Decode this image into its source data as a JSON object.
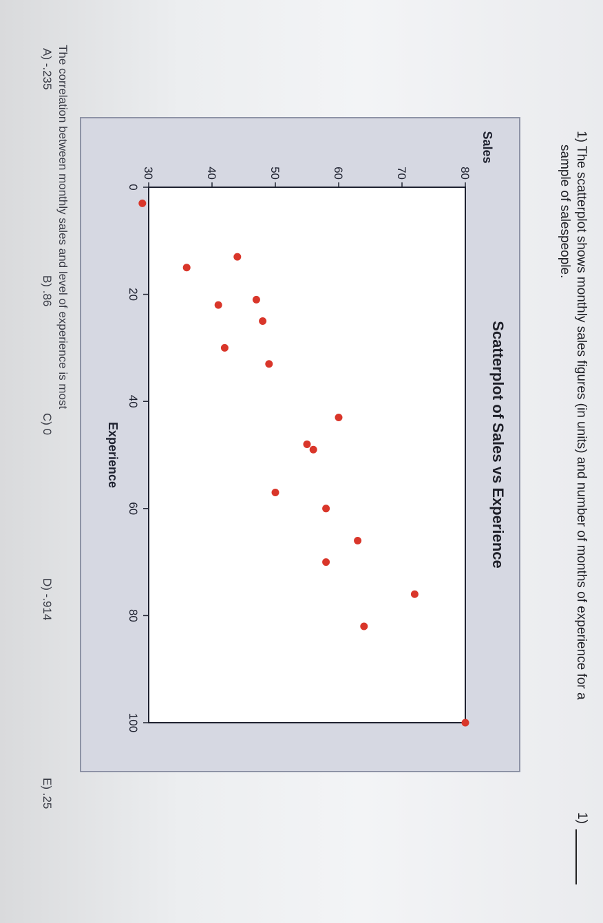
{
  "question": {
    "number": "1)",
    "line1": "1) The scatterplot shows monthly sales figures (in units) and number of months of experience for a",
    "line2": "sample of salespeople.",
    "prompt": "The correlation between monthly sales and level of experience is most",
    "choices": [
      "A) -.235",
      "B) .86",
      "C) 0",
      "D) -.914",
      "E) .25"
    ]
  },
  "chart_data": {
    "type": "scatter",
    "title": "Scatterplot of Sales vs Experience",
    "xlabel": "Experience",
    "ylabel": "Sales",
    "xlim": [
      0,
      100
    ],
    "ylim": [
      30,
      80
    ],
    "xticks": [
      "0",
      "20",
      "40",
      "60",
      "80",
      "100"
    ],
    "yticks": [
      "30",
      "40",
      "50",
      "60",
      "70",
      "80"
    ],
    "grid": false,
    "points": [
      {
        "x": 3,
        "y": 29
      },
      {
        "x": 13,
        "y": 44
      },
      {
        "x": 15,
        "y": 36
      },
      {
        "x": 21,
        "y": 47
      },
      {
        "x": 22,
        "y": 41
      },
      {
        "x": 25,
        "y": 48
      },
      {
        "x": 30,
        "y": 42
      },
      {
        "x": 33,
        "y": 49
      },
      {
        "x": 43,
        "y": 60
      },
      {
        "x": 48,
        "y": 55
      },
      {
        "x": 49,
        "y": 56
      },
      {
        "x": 57,
        "y": 50
      },
      {
        "x": 60,
        "y": 58
      },
      {
        "x": 66,
        "y": 63
      },
      {
        "x": 70,
        "y": 58
      },
      {
        "x": 76,
        "y": 72
      },
      {
        "x": 82,
        "y": 64
      },
      {
        "x": 100,
        "y": 80
      }
    ],
    "point_color": "#d9362a"
  }
}
